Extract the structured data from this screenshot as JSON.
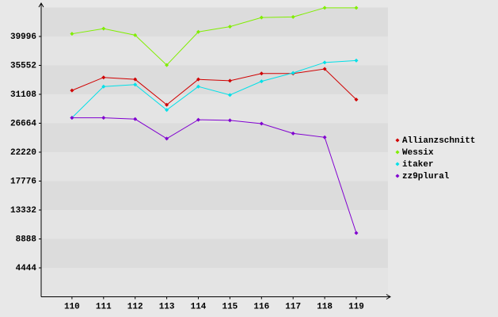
{
  "chart_data": {
    "type": "line",
    "categories": [
      "110",
      "111",
      "112",
      "113",
      "114",
      "115",
      "116",
      "117",
      "118",
      "119"
    ],
    "series": [
      {
        "name": "Allianzschnitt",
        "color": "#d00000",
        "values": [
          31700,
          33700,
          33400,
          29500,
          33400,
          33200,
          34300,
          34300,
          35000,
          30300
        ]
      },
      {
        "name": "Wessix",
        "color": "#80ee00",
        "values": [
          40400,
          41200,
          40200,
          35600,
          40700,
          41500,
          42900,
          43000,
          44400,
          44400
        ]
      },
      {
        "name": "itaker",
        "color": "#00e0e8",
        "values": [
          27500,
          32300,
          32600,
          28700,
          32300,
          31000,
          33100,
          34400,
          36000,
          36300
        ]
      },
      {
        "name": "zz9plural",
        "color": "#8000d0",
        "values": [
          27500,
          27500,
          27300,
          24300,
          27200,
          27100,
          26600,
          25100,
          24500,
          9800
        ]
      }
    ],
    "ylim": [
      0,
      44440
    ],
    "yticks": [
      4444,
      8888,
      13332,
      17776,
      22220,
      26664,
      31108,
      35552,
      39996
    ],
    "grid": true
  }
}
